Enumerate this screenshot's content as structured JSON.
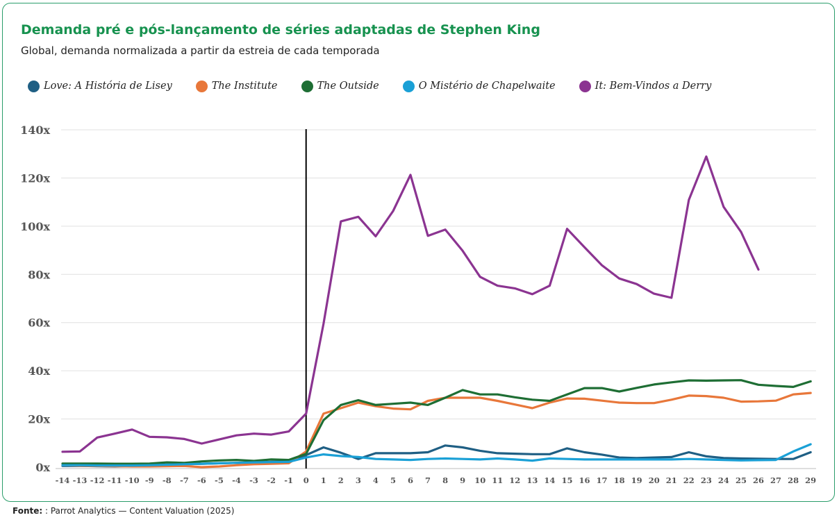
{
  "chart_data": {
    "type": "line",
    "title": "Demanda pré e pós-lançamento de séries adaptadas de Stephen King",
    "subtitle": "Global, demanda normalizada a partir da estreia de cada temporada",
    "x": [
      -14,
      -13,
      -12,
      -11,
      -10,
      -9,
      -8,
      -7,
      -6,
      -5,
      -4,
      -3,
      -2,
      -1,
      0,
      1,
      2,
      3,
      4,
      5,
      6,
      7,
      8,
      9,
      10,
      11,
      12,
      13,
      14,
      15,
      16,
      17,
      18,
      19,
      20,
      21,
      22,
      23,
      24,
      25,
      26,
      27,
      28,
      29
    ],
    "y_ticks": [
      0,
      20,
      40,
      60,
      80,
      100,
      120,
      140
    ],
    "y_tick_labels": [
      "0x",
      "20x",
      "40x",
      "60x",
      "80x",
      "100x",
      "120x",
      "140x"
    ],
    "ylim": [
      0,
      140
    ],
    "grid": true,
    "legend_position": "top",
    "launch_marker_x": 0,
    "series": [
      {
        "name": "Love: A História de Lisey",
        "color": "#1f5f84",
        "start": -14,
        "values": [
          0.5,
          0.5,
          0.4,
          0.3,
          0.4,
          0.8,
          1.0,
          1.2,
          1.4,
          1.6,
          1.8,
          2.0,
          2.2,
          2.3,
          5.0,
          8.2,
          6.0,
          3.4,
          5.8,
          5.8,
          5.8,
          6.2,
          9.0,
          8.2,
          6.8,
          5.8,
          5.6,
          5.4,
          5.4,
          7.8,
          6.2,
          5.2,
          4.0,
          3.8,
          4.0,
          4.2,
          6.2,
          4.5,
          3.8,
          3.6,
          3.5,
          3.4,
          3.4,
          6.2
        ]
      },
      {
        "name": "The Institute",
        "color": "#e8773a",
        "start": -14,
        "values": [
          0.8,
          0.6,
          0.5,
          0.4,
          0.3,
          0.3,
          0.4,
          0.5,
          0.0,
          0.3,
          0.8,
          1.2,
          1.4,
          1.6,
          6.5,
          22.2,
          24.5,
          26.8,
          25.3,
          24.3,
          24.0,
          27.5,
          28.8,
          28.8,
          28.8,
          27.5,
          26.0,
          24.5,
          26.8,
          28.5,
          28.4,
          27.6,
          26.8,
          26.6,
          26.6,
          28.0,
          29.7,
          29.5,
          28.8,
          27.2,
          27.3,
          27.6,
          30.2,
          30.8
        ]
      },
      {
        "name": "The Outside",
        "color": "#1e6e34",
        "start": -14,
        "values": [
          1.5,
          1.5,
          1.5,
          1.4,
          1.4,
          1.5,
          2.0,
          1.8,
          2.4,
          2.8,
          3.0,
          2.6,
          3.2,
          3.0,
          5.5,
          19.5,
          25.8,
          27.8,
          25.8,
          26.3,
          26.8,
          25.8,
          28.8,
          32.0,
          30.2,
          30.2,
          29.0,
          28.0,
          27.5,
          30.2,
          32.8,
          32.8,
          31.4,
          32.9,
          34.3,
          35.2,
          36.0,
          35.9,
          36.0,
          36.1,
          34.2,
          33.7,
          33.3,
          35.6
        ]
      },
      {
        "name": "O Mistério de Chapelwaite",
        "color": "#1aa0d6",
        "start": -14,
        "values": [
          0.8,
          0.8,
          0.7,
          0.7,
          0.7,
          0.8,
          1.0,
          1.2,
          1.4,
          1.6,
          1.8,
          2.0,
          2.1,
          2.2,
          4.0,
          5.3,
          4.6,
          4.2,
          3.4,
          3.2,
          3.0,
          3.4,
          3.6,
          3.4,
          3.2,
          3.6,
          3.2,
          2.7,
          3.6,
          3.4,
          3.2,
          3.2,
          3.2,
          3.2,
          3.2,
          3.2,
          3.4,
          3.2,
          3.0,
          2.8,
          2.9,
          3.0,
          6.5,
          9.5
        ]
      },
      {
        "name": "It: Bem-Vindos a Derry",
        "color": "#8b3491",
        "start": -14,
        "values": [
          6.4,
          6.5,
          12.3,
          13.9,
          15.6,
          12.6,
          12.4,
          11.7,
          9.8,
          11.5,
          13.2,
          13.9,
          13.5,
          14.8,
          22.2,
          59.5,
          102.0,
          103.9,
          95.8,
          106.3,
          121.3,
          96.0,
          98.6,
          89.8,
          79.0,
          75.3,
          74.2,
          71.8,
          75.3,
          98.9,
          91.3,
          83.8,
          78.3,
          76.0,
          72.0,
          70.3,
          110.9,
          128.9,
          108.0,
          97.6,
          82.0,
          null,
          null,
          null
        ]
      }
    ]
  },
  "source": {
    "label": "Fonte:",
    "text": " : Parrot Analytics — Content Valuation (2025)"
  }
}
